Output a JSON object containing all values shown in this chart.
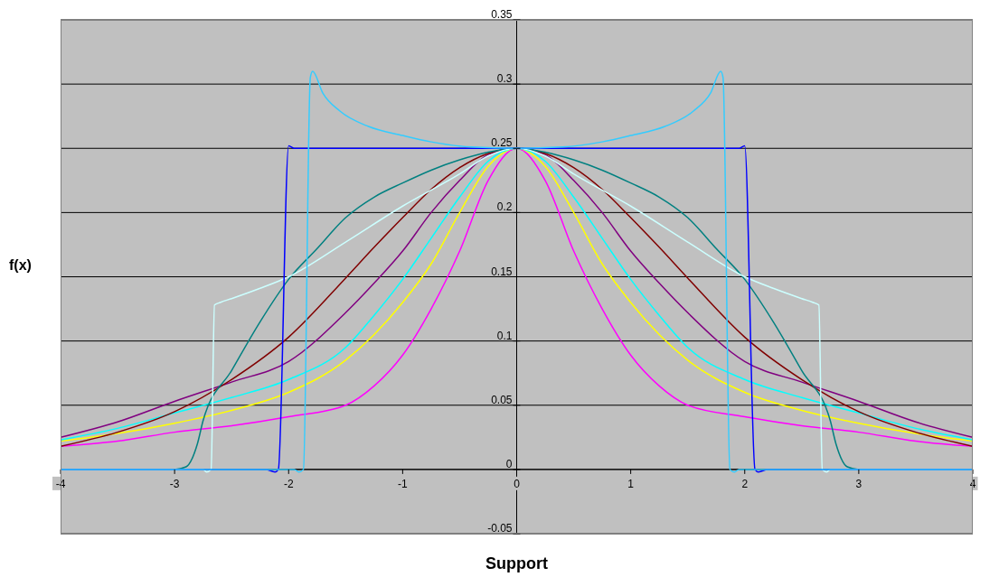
{
  "chart_data": {
    "type": "line",
    "xlabel": "Support",
    "ylabel": "f(x)",
    "xlim": [
      -4,
      4
    ],
    "xticks": [
      -4,
      -3,
      -2,
      -1,
      0,
      1,
      2,
      3,
      4
    ],
    "ylim": [
      -0.05,
      0.35
    ],
    "yticks": [
      -0.05,
      0,
      0.05,
      0.1,
      0.15,
      0.2,
      0.25,
      0.3,
      0.35
    ],
    "grid": "y",
    "series": [
      {
        "color": "#ff00ff",
        "x": [
          -4,
          -3.5,
          -3,
          -2.5,
          -2,
          -1.5,
          -1.25,
          -1,
          -0.75,
          -0.5,
          -0.25,
          0,
          0.25,
          0.5,
          0.75,
          1,
          1.25,
          1.5,
          2,
          2.5,
          3,
          3.5,
          4
        ],
        "values": [
          0.018,
          0.022,
          0.029,
          0.034,
          0.041,
          0.05,
          0.065,
          0.089,
          0.125,
          0.17,
          0.225,
          0.25,
          0.225,
          0.17,
          0.125,
          0.089,
          0.065,
          0.05,
          0.041,
          0.034,
          0.029,
          0.022,
          0.018
        ]
      },
      {
        "color": "#ffff00",
        "x": [
          -4,
          -3.5,
          -3,
          -2.5,
          -2,
          -1.5,
          -1.25,
          -1,
          -0.75,
          -0.5,
          -0.25,
          0,
          0.25,
          0.5,
          0.75,
          1,
          1.25,
          1.5,
          2,
          2.5,
          3,
          3.5,
          4
        ],
        "values": [
          0.022,
          0.028,
          0.036,
          0.046,
          0.06,
          0.085,
          0.105,
          0.13,
          0.16,
          0.2,
          0.236,
          0.25,
          0.236,
          0.2,
          0.16,
          0.13,
          0.105,
          0.085,
          0.06,
          0.046,
          0.036,
          0.028,
          0.022
        ]
      },
      {
        "color": "#00ffff",
        "x": [
          -4,
          -3.5,
          -3,
          -2.5,
          -2,
          -1.5,
          -1.25,
          -1,
          -0.75,
          -0.5,
          -0.25,
          0,
          0.25,
          0.5,
          0.75,
          1,
          1.25,
          1.5,
          2,
          2.5,
          3,
          3.5,
          4
        ],
        "values": [
          0.023,
          0.032,
          0.044,
          0.056,
          0.07,
          0.095,
          0.12,
          0.148,
          0.18,
          0.212,
          0.24,
          0.25,
          0.24,
          0.212,
          0.18,
          0.148,
          0.12,
          0.095,
          0.07,
          0.056,
          0.044,
          0.032,
          0.023
        ]
      },
      {
        "color": "#800080",
        "x": [
          -4,
          -3.5,
          -3,
          -2.5,
          -2,
          -1.5,
          -1.25,
          -1,
          -0.75,
          -0.5,
          -0.25,
          0,
          0.25,
          0.5,
          0.75,
          1,
          1.25,
          1.5,
          2,
          2.5,
          3,
          3.5,
          4
        ],
        "values": [
          0.025,
          0.037,
          0.053,
          0.068,
          0.084,
          0.122,
          0.145,
          0.17,
          0.2,
          0.225,
          0.245,
          0.25,
          0.245,
          0.225,
          0.2,
          0.17,
          0.145,
          0.122,
          0.084,
          0.068,
          0.053,
          0.037,
          0.025
        ]
      },
      {
        "color": "#800000",
        "x": [
          -4,
          -3.5,
          -3,
          -2.5,
          -2,
          -1.5,
          -1.25,
          -1,
          -0.75,
          -0.5,
          -0.25,
          0,
          0.25,
          0.5,
          0.75,
          1,
          1.25,
          1.5,
          2,
          2.5,
          3,
          3.5,
          4
        ],
        "values": [
          0.018,
          0.029,
          0.045,
          0.07,
          0.103,
          0.149,
          0.173,
          0.196,
          0.218,
          0.235,
          0.246,
          0.25,
          0.246,
          0.235,
          0.218,
          0.196,
          0.173,
          0.149,
          0.103,
          0.07,
          0.045,
          0.029,
          0.018
        ]
      },
      {
        "color": "#008080",
        "x": [
          -4,
          -3,
          -2.9,
          -2.8,
          -2.75,
          -2.5,
          -2.25,
          -2,
          -1.75,
          -1.5,
          -1.25,
          -1,
          -0.75,
          -0.5,
          -0.25,
          0,
          0.25,
          0.5,
          0.75,
          1,
          1.25,
          1.5,
          1.75,
          2,
          2.25,
          2.5,
          2.75,
          2.8,
          2.9,
          3,
          4
        ],
        "values": [
          0,
          0,
          0.002,
          0.02,
          0.038,
          0.077,
          0.115,
          0.148,
          0.172,
          0.196,
          0.212,
          0.223,
          0.233,
          0.241,
          0.247,
          0.25,
          0.247,
          0.241,
          0.233,
          0.223,
          0.212,
          0.196,
          0.172,
          0.148,
          0.115,
          0.077,
          0.038,
          0.02,
          0.002,
          0,
          0
        ]
      },
      {
        "color": "#ccffff",
        "x": [
          -4,
          -2.75,
          -2.72,
          -2.68,
          -2.65,
          -2.6,
          -2.5,
          -2.25,
          -2,
          -1.5,
          -1,
          -0.5,
          -0.25,
          0,
          0.25,
          0.5,
          1,
          1.5,
          2,
          2.25,
          2.5,
          2.6,
          2.65,
          2.68,
          2.72,
          2.75,
          4
        ],
        "values": [
          0,
          0,
          -0.002,
          0,
          0.128,
          0.13,
          0.133,
          0.141,
          0.15,
          0.177,
          0.205,
          0.23,
          0.244,
          0.25,
          0.244,
          0.23,
          0.205,
          0.177,
          0.15,
          0.141,
          0.133,
          0.13,
          0.128,
          0,
          -0.002,
          0,
          0
        ]
      },
      {
        "color": "#0000ff",
        "x": [
          -4,
          -2.2,
          -2.12,
          -2.09,
          -2,
          -1.95,
          0,
          1.95,
          2,
          2.09,
          2.12,
          2.2,
          4
        ],
        "values": [
          0,
          0,
          -0.002,
          0,
          0.252,
          0.25,
          0.25,
          0.25,
          0.252,
          0,
          -0.002,
          0,
          0
        ]
      },
      {
        "color": "#33ccff",
        "x": [
          -4,
          -1.95,
          -1.91,
          -1.87,
          -1.81,
          -1.79,
          -1.7,
          -1.55,
          -1.3,
          -1,
          -0.75,
          -0.4,
          0,
          0.4,
          0.75,
          1,
          1.3,
          1.55,
          1.7,
          1.79,
          1.81,
          1.87,
          1.91,
          1.95,
          4
        ],
        "values": [
          0,
          0,
          -0.002,
          0,
          0.305,
          0.31,
          0.293,
          0.279,
          0.267,
          0.26,
          0.255,
          0.251,
          0.25,
          0.251,
          0.255,
          0.26,
          0.267,
          0.279,
          0.293,
          0.31,
          0.305,
          0,
          -0.002,
          0,
          0
        ]
      }
    ]
  }
}
